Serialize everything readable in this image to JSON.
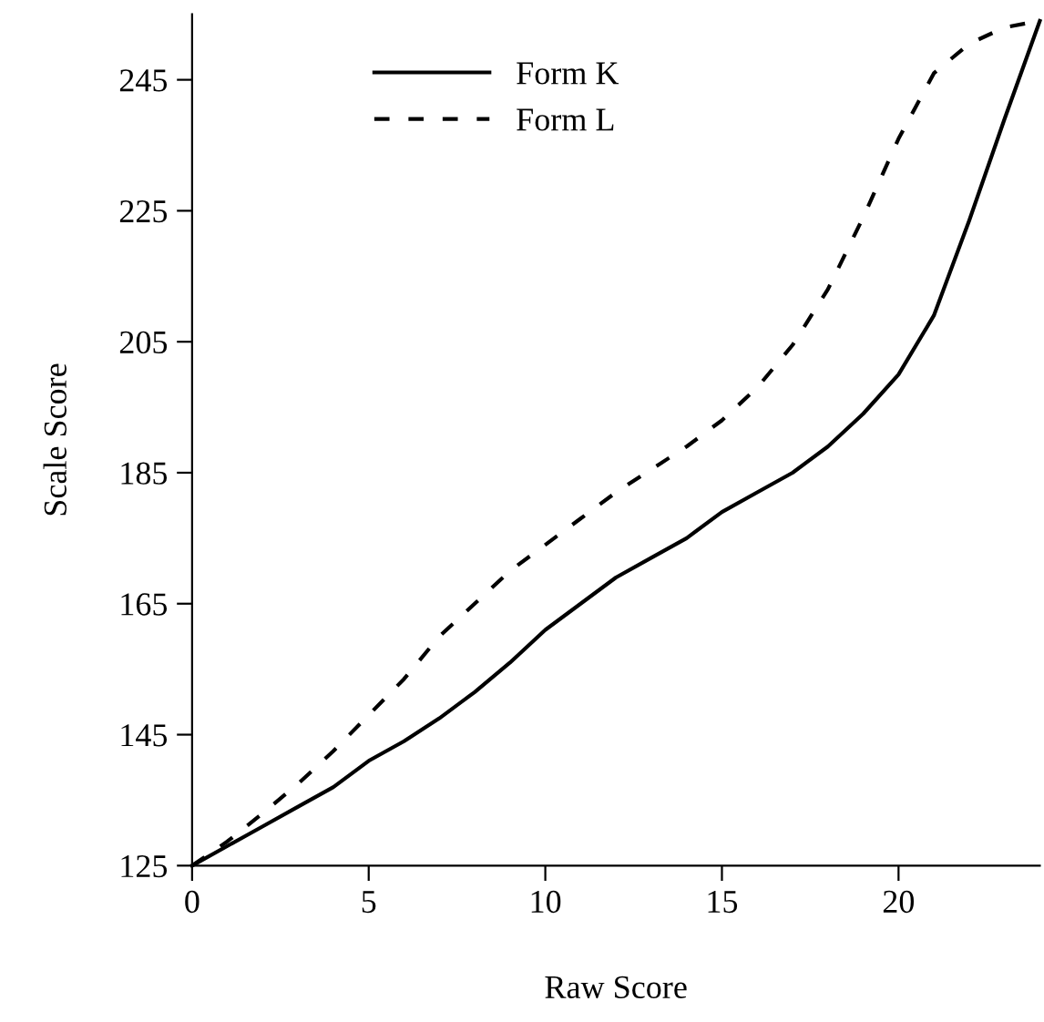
{
  "chart_data": {
    "type": "line",
    "xlabel": "Raw Score",
    "ylabel": "Scale Score",
    "x": [
      0,
      1,
      2,
      3,
      4,
      5,
      6,
      7,
      8,
      9,
      10,
      11,
      12,
      13,
      14,
      15,
      16,
      17,
      18,
      19,
      20,
      21,
      22,
      23,
      24
    ],
    "series": [
      {
        "name": "Form K",
        "color": "#000000",
        "line_style": "solid",
        "values": [
          125,
          128,
          131,
          134,
          137,
          141,
          144,
          147.5,
          151.5,
          156,
          161,
          165,
          169,
          172,
          175,
          179,
          182,
          185,
          189,
          194,
          200,
          209,
          223.5,
          239,
          254
        ]
      },
      {
        "name": "Form L",
        "color": "#000000",
        "line_style": "dashed",
        "values": [
          125,
          128.7,
          133,
          137.5,
          142.5,
          148,
          153.5,
          160,
          165,
          170,
          174,
          178,
          182,
          185.5,
          189,
          193,
          198,
          204.5,
          213,
          224,
          236,
          246,
          250.5,
          253,
          254
        ]
      }
    ],
    "xlim": [
      0,
      24
    ],
    "xticks": [
      0,
      5,
      10,
      15,
      20
    ],
    "ylim": [
      125,
      255
    ],
    "yticks": [
      125,
      145,
      165,
      185,
      205,
      225,
      245
    ],
    "grid": false,
    "legend": "top left",
    "marker": "none"
  }
}
